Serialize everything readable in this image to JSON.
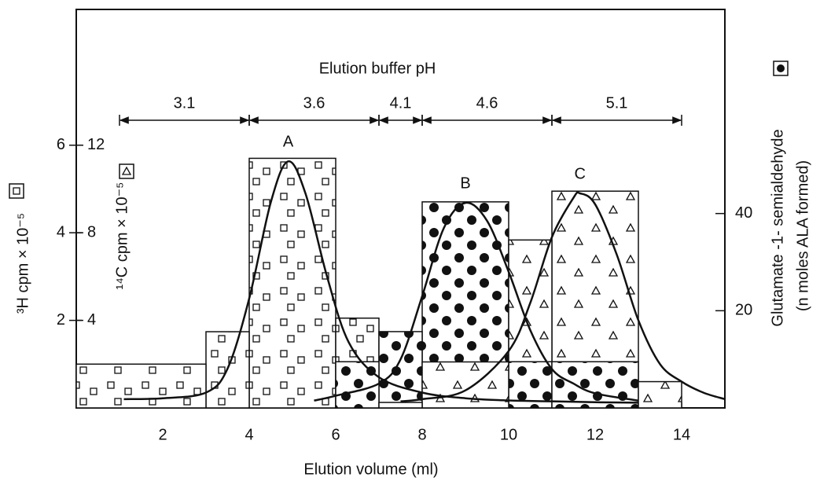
{
  "chart_data": {
    "type": "histogram",
    "title": "Elution buffer pH",
    "x_label": "Elution volume (ml)",
    "y_label": "³H cpm × 10⁻⁵",
    "y3_label": "¹⁴C cpm × 10⁻⁵",
    "y2_label": [
      "Glutamate -1- semialdehyde",
      "(n moles ALA formed)"
    ],
    "xlim": [
      0,
      15
    ],
    "xticks": [
      2,
      4,
      6,
      8,
      10,
      12,
      14
    ],
    "ylim": [
      0,
      9.1
    ],
    "yticks": [
      2,
      4,
      6
    ],
    "y3lim": [
      0,
      18.2
    ],
    "y3ticks": [
      4,
      8,
      12
    ],
    "y2lim": [
      0,
      82
    ],
    "y2ticks": [
      20,
      40
    ],
    "ph_ranges": [
      {
        "label": "3.1",
        "range": [
          1,
          4
        ]
      },
      {
        "label": "3.6",
        "range": [
          4,
          7
        ]
      },
      {
        "label": "4.1",
        "range": [
          7,
          8
        ]
      },
      {
        "label": "4.6",
        "range": [
          8,
          11
        ]
      },
      {
        "label": "5.1",
        "range": [
          11,
          14
        ]
      }
    ],
    "series": [
      {
        "marker": "square",
        "axis": "y",
        "bins": [
          0,
          3,
          4,
          6,
          7
        ],
        "values": [
          1.0,
          1.74,
          5.7,
          2.05
        ],
        "curve": {
          "x": [
            1.1,
            2,
            3,
            3.5,
            4,
            4.5,
            4.9,
            5.3,
            5.8,
            6.3,
            7,
            8,
            9,
            10,
            11,
            12,
            13
          ],
          "values": [
            0.2,
            0.22,
            0.35,
            0.9,
            2.5,
            4.7,
            5.63,
            4.9,
            3.0,
            1.5,
            0.7,
            0.35,
            0.22,
            0.17,
            0.15,
            0.13,
            0.12
          ]
        },
        "peak_label": "A"
      },
      {
        "marker": "dot",
        "axis": "y2",
        "bins": [
          6,
          7,
          8,
          10,
          11,
          13
        ],
        "values": [
          9.5,
          15.7,
          42.4,
          9.5,
          9.5
        ],
        "curve": {
          "x": [
            5.5,
            6,
            7,
            7.5,
            8,
            8.5,
            9,
            9.5,
            10,
            10.5,
            11,
            11.5,
            12,
            13
          ],
          "values": [
            1.5,
            2.5,
            5,
            10,
            23,
            37,
            42.2,
            38.5,
            28,
            16,
            8,
            5,
            3,
            1.5
          ]
        },
        "peak_label": "B"
      },
      {
        "marker": "triangle",
        "axis": "y3",
        "bins": [
          7,
          8,
          10,
          11,
          13,
          14
        ],
        "values": [
          0.25,
          2.1,
          7.67,
          9.9,
          1.2
        ],
        "curve": {
          "x": [
            7.5,
            8,
            9,
            10,
            10.5,
            11,
            11.5,
            11.65,
            12,
            12.5,
            13,
            13.5,
            14,
            14.5,
            15
          ],
          "values": [
            0.3,
            0.4,
            0.8,
            2.6,
            4.8,
            7.8,
            9.6,
            9.8,
            9.3,
            7.0,
            4.0,
            2.0,
            1.2,
            0.7,
            0.4
          ]
        },
        "peak_label": "C"
      }
    ]
  }
}
